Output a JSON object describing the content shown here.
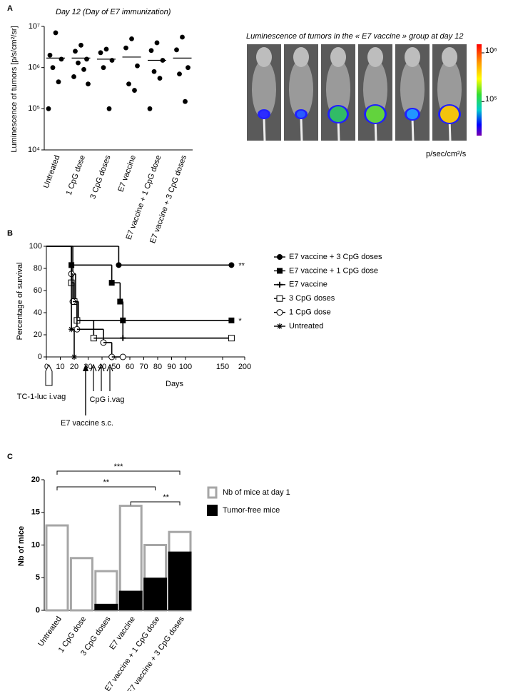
{
  "chart_data": [
    {
      "type": "scatter",
      "panel": "A",
      "title": "Day 12 (Day of E7 immunization)",
      "ylabel": "Luminescence of tumors [p/s/cm²/sr]",
      "log": true,
      "categories": [
        "Untreated",
        "1 CpG dose",
        "3 CpG doses",
        "E7 vaccine",
        "E7 vaccine + 1 CpG dose",
        "E7 vaccine + 3 CpG doses"
      ],
      "points": [
        [
          7000000,
          2000000,
          1600000,
          1000000,
          450000,
          100000
        ],
        [
          3500000,
          2500000,
          1600000,
          1300000,
          900000,
          600000,
          400000
        ],
        [
          2800000,
          2300000,
          1500000,
          1000000,
          100000
        ],
        [
          5000000,
          3000000,
          1100000,
          400000,
          280000
        ],
        [
          4000000,
          2600000,
          1500000,
          800000,
          550000,
          100000
        ],
        [
          5500000,
          2700000,
          1000000,
          700000,
          150000
        ]
      ],
      "medians": [
        1700000,
        1700000,
        1600000,
        1800000,
        1500000,
        1700000
      ],
      "color": "#000000",
      "ylim": [
        10000,
        10000000
      ],
      "yticks": [
        {
          "value": 10000,
          "label": "10⁴"
        },
        {
          "value": 100000,
          "label": "10⁵"
        },
        {
          "value": 1000000,
          "label": "10⁶"
        },
        {
          "value": 10000000,
          "label": "10⁷"
        }
      ]
    },
    {
      "type": "image",
      "title": "Luminescence of tumors in the « E7 vaccine » group at day 12",
      "colorbar_label": "p/sec/cm²/s",
      "log": true,
      "clim": [
        20000,
        1500000
      ],
      "cticks": [
        {
          "value": 1000000,
          "label": "10⁶"
        },
        {
          "value": 100000,
          "label": "10⁵"
        }
      ]
    },
    {
      "type": "line",
      "panel": "B",
      "xlabel": "Days",
      "ylabel": "Percentage of survival",
      "series": [
        {
          "name": "E7 vaccine + 3 CpG doses",
          "marker": "filled-circle",
          "annotation": "**",
          "x": [
            0,
            52,
            170
          ],
          "values": [
            100,
            83,
            83
          ]
        },
        {
          "name": "E7 vaccine + 1 CpG dose",
          "marker": "filled-square",
          "annotation": "*",
          "x": [
            0,
            18,
            47,
            53,
            55,
            170
          ],
          "values": [
            100,
            83,
            67,
            50,
            33,
            33
          ]
        },
        {
          "name": "E7 vaccine",
          "marker": "plus",
          "x": [
            0,
            19,
            21,
            23,
            55,
            170
          ],
          "values": [
            100,
            75,
            50,
            33,
            17,
            17
          ]
        },
        {
          "name": "3 CpG doses",
          "marker": "open-square",
          "x": [
            0,
            18,
            20,
            22,
            34,
            170
          ],
          "values": [
            100,
            67,
            50,
            33,
            17,
            17
          ]
        },
        {
          "name": "1 CpG dose",
          "marker": "open-circle",
          "x": [
            0,
            18,
            19,
            22,
            41,
            47,
            55
          ],
          "values": [
            100,
            75,
            50,
            25,
            13,
            0,
            0
          ]
        },
        {
          "name": "Untreated",
          "marker": "star",
          "x": [
            0,
            18,
            20
          ],
          "values": [
            100,
            25,
            0
          ]
        }
      ],
      "color": "#000000",
      "xlim": [
        0,
        200
      ],
      "xticks": [
        0,
        10,
        20,
        30,
        40,
        50,
        60,
        70,
        80,
        90,
        100,
        150,
        200
      ],
      "ylim": [
        0,
        100
      ],
      "yticks": [
        0,
        20,
        40,
        60,
        80,
        100
      ],
      "timeline": [
        "TC-1-luc i.vag",
        "CpG i.vag",
        "E7 vaccine s.c."
      ]
    },
    {
      "type": "bar",
      "panel": "C",
      "ylabel": "Nb of mice",
      "categories": [
        "Untreated",
        "1 CpG dose",
        "3 CpG doses",
        "E7 vaccine",
        "E7 vaccine + 1 CpG dose",
        "E7 vaccine + 3 CpG doses"
      ],
      "series": [
        {
          "name": "Nb of mice at day 1",
          "color": "#a6a6a6",
          "style": "outline",
          "values": [
            13,
            8,
            6,
            16,
            10,
            12
          ]
        },
        {
          "name": "Tumor-free mice",
          "color": "#000000",
          "style": "filled",
          "values": [
            0,
            0,
            1,
            3,
            5,
            9
          ]
        }
      ],
      "ylim": [
        0,
        20
      ],
      "yticks": [
        0,
        5,
        10,
        15,
        20
      ],
      "significance": [
        "***",
        "**",
        "**"
      ]
    }
  ]
}
